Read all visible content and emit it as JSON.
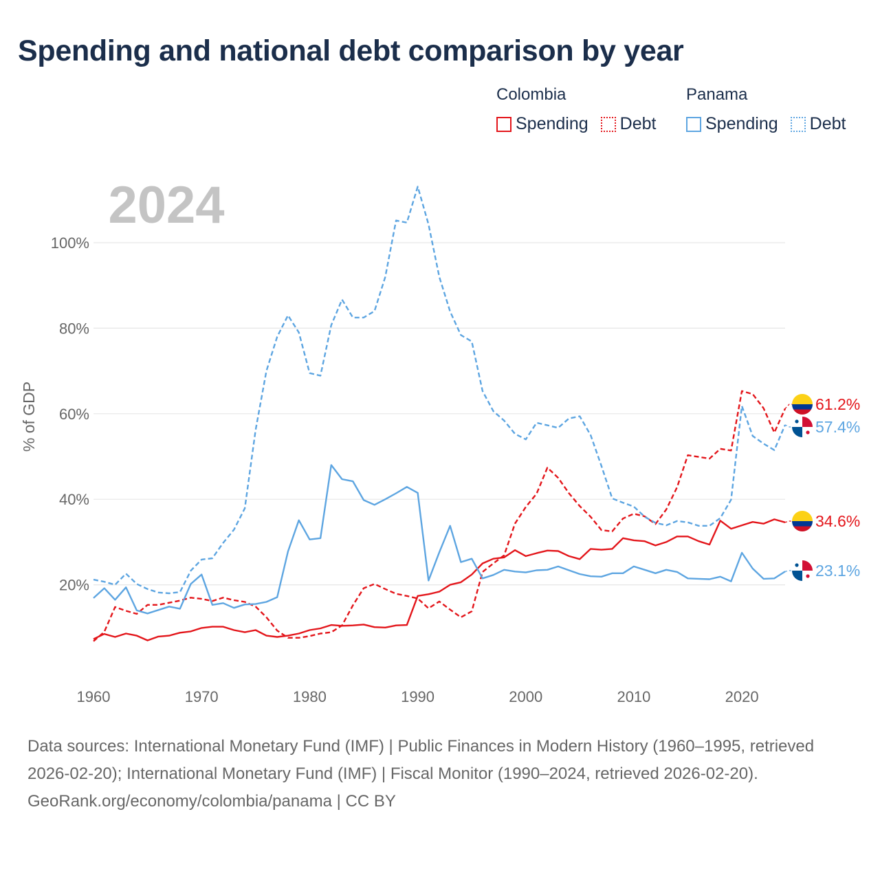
{
  "title": "Spending and national debt comparison by year",
  "year_label": "2024",
  "legend": {
    "groups": [
      {
        "country": "Colombia",
        "color": "#e3151a",
        "items": [
          {
            "label": "Spending",
            "style": "solid"
          },
          {
            "label": "Debt",
            "style": "dotted"
          }
        ]
      },
      {
        "country": "Panama",
        "color": "#5da5e1",
        "items": [
          {
            "label": "Spending",
            "style": "solid"
          },
          {
            "label": "Debt",
            "style": "dotted"
          }
        ]
      }
    ]
  },
  "footer": {
    "sources": "Data sources: International Monetary Fund (IMF) | Public Finances in Modern History (1960–1995, retrieved 2026-02-20); International Monetary Fund (IMF) | Fiscal Monitor (1990–2024, retrieved 2026-02-20).",
    "credit": "GeoRank.org/economy/colombia/panama | CC BY"
  },
  "chart_data": {
    "type": "line",
    "title": "Spending and national debt comparison by year",
    "xlabel": "",
    "ylabel": "% of GDP",
    "xlim": [
      1960,
      2024
    ],
    "ylim": [
      0,
      100
    ],
    "x_ticks": [
      1960,
      1970,
      1980,
      1990,
      2000,
      2010,
      2020
    ],
    "y_ticks": [
      20,
      40,
      60,
      80,
      100
    ],
    "y_tick_labels": [
      "20%",
      "40%",
      "60%",
      "80%",
      "100%"
    ],
    "grid": true,
    "x": [
      1960,
      1961,
      1962,
      1963,
      1964,
      1965,
      1966,
      1967,
      1968,
      1969,
      1970,
      1971,
      1972,
      1973,
      1974,
      1975,
      1976,
      1977,
      1978,
      1979,
      1980,
      1981,
      1982,
      1983,
      1984,
      1985,
      1986,
      1987,
      1988,
      1989,
      1990,
      1991,
      1992,
      1993,
      1994,
      1995,
      1996,
      1997,
      1998,
      1999,
      2000,
      2001,
      2002,
      2003,
      2004,
      2005,
      2006,
      2007,
      2008,
      2009,
      2010,
      2011,
      2012,
      2013,
      2014,
      2015,
      2016,
      2017,
      2018,
      2019,
      2020,
      2021,
      2022,
      2023,
      2024
    ],
    "series": [
      {
        "name": "Colombia Spending",
        "country": "Colombia",
        "style": "solid",
        "color": "#e3151a",
        "end_label": "34.6%",
        "values": [
          7.3,
          8.5,
          7.8,
          8.6,
          8.1,
          7.0,
          7.9,
          8.1,
          8.8,
          9.1,
          9.9,
          10.2,
          10.2,
          9.4,
          8.9,
          9.4,
          8.1,
          7.8,
          8.1,
          8.6,
          9.4,
          9.8,
          10.6,
          10.4,
          10.5,
          10.7,
          10.1,
          10.0,
          10.5,
          10.6,
          17.4,
          17.8,
          18.4,
          20.0,
          20.6,
          22.4,
          25.0,
          26.1,
          26.4,
          28.1,
          26.7,
          27.4,
          28.0,
          27.9,
          26.7,
          26.0,
          28.4,
          28.2,
          28.4,
          30.9,
          30.4,
          30.2,
          29.2,
          30.0,
          31.3,
          31.3,
          30.2,
          29.4,
          35.0,
          33.1,
          33.9,
          34.7,
          34.3,
          35.3,
          34.6
        ]
      },
      {
        "name": "Colombia Debt",
        "country": "Colombia",
        "style": "dashed",
        "color": "#e3151a",
        "end_label": "61.2%",
        "values": [
          6.8,
          9.0,
          14.8,
          13.9,
          13.2,
          15.3,
          15.3,
          15.8,
          16.3,
          17.0,
          16.7,
          16.2,
          17.0,
          16.4,
          16.0,
          14.9,
          12.4,
          9.3,
          7.6,
          7.6,
          8.0,
          8.6,
          8.9,
          10.5,
          15.2,
          19.2,
          20.2,
          19.0,
          17.9,
          17.4,
          16.8,
          14.5,
          16.1,
          14.2,
          12.4,
          13.8,
          23.0,
          25.0,
          26.9,
          34.3,
          38.2,
          41.3,
          47.4,
          45.0,
          41.4,
          38.4,
          35.9,
          32.8,
          32.5,
          35.5,
          36.6,
          36.0,
          34.2,
          37.6,
          42.8,
          50.3,
          49.9,
          49.5,
          51.8,
          51.4,
          65.3,
          64.6,
          61.3,
          55.6,
          61.2
        ]
      },
      {
        "name": "Panama Spending",
        "country": "Panama",
        "style": "solid",
        "color": "#5da5e1",
        "end_label": "23.1%",
        "values": [
          16.9,
          19.2,
          16.5,
          19.4,
          14.0,
          13.3,
          14.1,
          14.9,
          14.4,
          20.2,
          22.4,
          15.3,
          15.7,
          14.6,
          15.4,
          15.5,
          16.0,
          17.1,
          27.8,
          35.1,
          30.6,
          30.9,
          48.0,
          44.7,
          44.2,
          39.8,
          38.7,
          40.0,
          41.4,
          42.9,
          41.5,
          21.0,
          27.6,
          33.8,
          25.3,
          26.1,
          21.5,
          22.3,
          23.5,
          23.1,
          22.9,
          23.4,
          23.5,
          24.3,
          23.4,
          22.5,
          22.0,
          21.9,
          22.7,
          22.7,
          24.3,
          23.5,
          22.7,
          23.5,
          23.0,
          21.5,
          21.4,
          21.3,
          21.9,
          20.8,
          27.5,
          23.8,
          21.4,
          21.5,
          23.1
        ]
      },
      {
        "name": "Panama Debt",
        "country": "Panama",
        "style": "dashed",
        "color": "#5da5e1",
        "end_label": "57.4%",
        "values": [
          21.2,
          20.7,
          20.0,
          22.6,
          20.2,
          19.0,
          18.2,
          18.0,
          18.3,
          23.3,
          25.9,
          26.2,
          29.8,
          32.9,
          37.9,
          56.2,
          70.0,
          78.0,
          83.0,
          79.0,
          69.5,
          68.9,
          80.7,
          86.7,
          82.5,
          82.5,
          84.0,
          92.0,
          105.2,
          104.7,
          113.1,
          104.3,
          92.0,
          83.9,
          78.4,
          76.9,
          65.3,
          60.6,
          58.4,
          55.3,
          54.0,
          57.9,
          57.3,
          56.7,
          58.9,
          59.4,
          55.0,
          47.8,
          40.2,
          39.2,
          38.3,
          35.9,
          34.5,
          33.9,
          34.9,
          34.6,
          33.8,
          33.8,
          35.6,
          39.9,
          61.8,
          54.8,
          53.0,
          51.5,
          57.4
        ]
      }
    ]
  }
}
